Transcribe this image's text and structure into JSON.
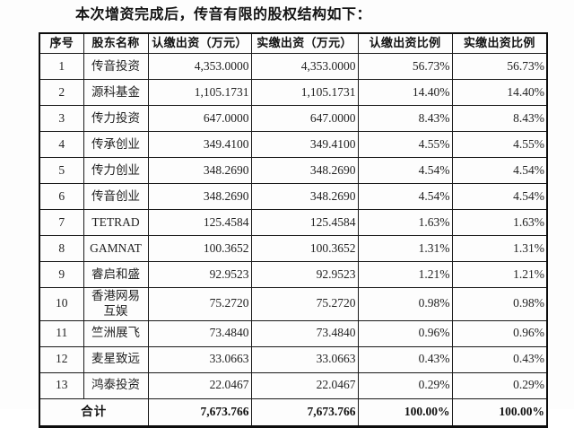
{
  "page": {
    "title": "本次增资完成后，传音有限的股权结构如下："
  },
  "table": {
    "headers": [
      "序号",
      "股东名称",
      "认缴出资（万元）",
      "实缴出资（万元）",
      "认缴出资比例",
      "实缴出资比例"
    ],
    "rows": [
      {
        "no": "1",
        "name": "传音投资",
        "subscribed": "4,353.0000",
        "paid": "4,353.0000",
        "subscribed_ratio": "56.73%",
        "paid_ratio": "56.73%"
      },
      {
        "no": "2",
        "name": "源科基金",
        "subscribed": "1,105.1731",
        "paid": "1,105.1731",
        "subscribed_ratio": "14.40%",
        "paid_ratio": "14.40%"
      },
      {
        "no": "3",
        "name": "传力投资",
        "subscribed": "647.0000",
        "paid": "647.0000",
        "subscribed_ratio": "8.43%",
        "paid_ratio": "8.43%"
      },
      {
        "no": "4",
        "name": "传承创业",
        "subscribed": "349.4100",
        "paid": "349.4100",
        "subscribed_ratio": "4.55%",
        "paid_ratio": "4.55%"
      },
      {
        "no": "5",
        "name": "传力创业",
        "subscribed": "348.2690",
        "paid": "348.2690",
        "subscribed_ratio": "4.54%",
        "paid_ratio": "4.54%"
      },
      {
        "no": "6",
        "name": "传音创业",
        "subscribed": "348.2690",
        "paid": "348.2690",
        "subscribed_ratio": "4.54%",
        "paid_ratio": "4.54%"
      },
      {
        "no": "7",
        "name": "TETRAD",
        "subscribed": "125.4584",
        "paid": "125.4584",
        "subscribed_ratio": "1.63%",
        "paid_ratio": "1.63%"
      },
      {
        "no": "8",
        "name": "GAMNAT",
        "subscribed": "100.3652",
        "paid": "100.3652",
        "subscribed_ratio": "1.31%",
        "paid_ratio": "1.31%"
      },
      {
        "no": "9",
        "name": "睿启和盛",
        "subscribed": "92.9523",
        "paid": "92.9523",
        "subscribed_ratio": "1.21%",
        "paid_ratio": "1.21%"
      },
      {
        "no": "10",
        "name": "香港网易互娱",
        "subscribed": "75.2720",
        "paid": "75.2720",
        "subscribed_ratio": "0.98%",
        "paid_ratio": "0.98%"
      },
      {
        "no": "11",
        "name": "竺洲展飞",
        "subscribed": "73.4840",
        "paid": "73.4840",
        "subscribed_ratio": "0.96%",
        "paid_ratio": "0.96%"
      },
      {
        "no": "12",
        "name": "麦星致远",
        "subscribed": "33.0663",
        "paid": "33.0663",
        "subscribed_ratio": "0.43%",
        "paid_ratio": "0.43%"
      },
      {
        "no": "13",
        "name": "鸿泰投资",
        "subscribed": "22.0467",
        "paid": "22.0467",
        "subscribed_ratio": "0.29%",
        "paid_ratio": "0.29%"
      }
    ],
    "total": {
      "label": "合计",
      "subscribed": "7,673.766",
      "paid": "7,673.766",
      "subscribed_ratio": "100.00%",
      "paid_ratio": "100.00%"
    }
  }
}
